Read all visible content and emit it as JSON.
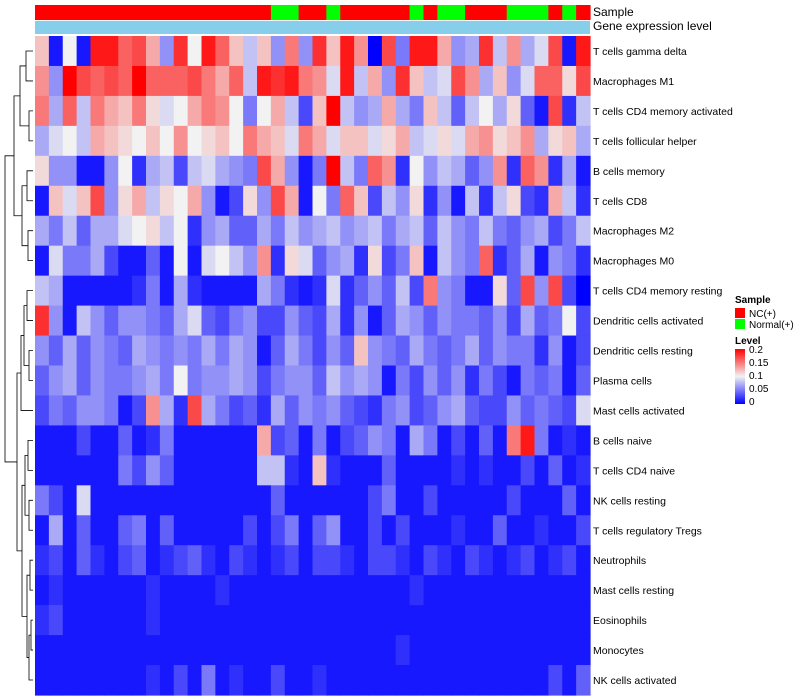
{
  "chart_data": {
    "type": "heatmap",
    "title": "",
    "row_labels": [
      "T cells gamma delta",
      "Macrophages M1",
      "T cells CD4 memory activated",
      "T cells follicular helper",
      "B cells memory",
      "T cells CD8",
      "Macrophages M2",
      "Macrophages M0",
      "T cells CD4 memory resting",
      "Dendritic cells activated",
      "Dendritic cells resting",
      "Plasma cells",
      "Mast cells activated",
      "B cells naive",
      "T cells CD4 naive",
      "NK cells resting",
      "T cells regulatory  Tregs",
      "Neutrophils",
      "Mast cells resting",
      "Eosinophils",
      "Monocytes",
      "NK cells activated"
    ],
    "annotations": {
      "sample_label": "Sample",
      "expression_label": "Gene expression level",
      "sample_groups": [
        "N",
        "N",
        "N",
        "N",
        "N",
        "N",
        "N",
        "N",
        "N",
        "N",
        "N",
        "N",
        "N",
        "N",
        "N",
        "N",
        "N",
        "T",
        "T",
        "N",
        "N",
        "T",
        "N",
        "N",
        "N",
        "N",
        "N",
        "T",
        "N",
        "T",
        "T",
        "N",
        "N",
        "N",
        "T",
        "T",
        "T",
        "N",
        "T",
        "N"
      ],
      "group_codes": {
        "N": "NC(+)",
        "T": "Normal(+)"
      }
    },
    "legend": {
      "sample_title": "Sample",
      "sample_entries": [
        {
          "label": "NC(+)",
          "color": "#FF0000"
        },
        {
          "label": "Normal(+)",
          "color": "#00FF00"
        }
      ],
      "level_title": "Level",
      "level_ticks": [
        "0.2",
        "0.15",
        "0.1",
        "0.05",
        "0"
      ],
      "level_range": [
        0,
        0.2
      ]
    },
    "colors": {
      "low": "#0000FF",
      "mid": "#F2F2F2",
      "high": "#FF0000",
      "annotation_bar": "#87CEEB",
      "dendrogram": "#000000"
    },
    "values": [
      [
        0.12,
        0.01,
        0.1,
        0.01,
        0.19,
        0.19,
        0.16,
        0.17,
        0.13,
        0.06,
        0.18,
        0.1,
        0.19,
        0.16,
        0.12,
        0.08,
        0.12,
        0.06,
        0.15,
        0.06,
        0.18,
        0.12,
        0.19,
        0.14,
        0.0,
        0.17,
        0.05,
        0.19,
        0.19,
        0.13,
        0.06,
        0.07,
        0.18,
        0.08,
        0.14,
        0.07,
        0.09,
        0.17,
        0.01,
        0.19
      ],
      [
        0.14,
        0.06,
        0.2,
        0.17,
        0.16,
        0.17,
        0.16,
        0.2,
        0.16,
        0.16,
        0.16,
        0.17,
        0.15,
        0.13,
        0.16,
        0.08,
        0.19,
        0.18,
        0.19,
        0.15,
        0.14,
        0.09,
        0.19,
        0.08,
        0.13,
        0.06,
        0.18,
        0.12,
        0.08,
        0.09,
        0.17,
        0.14,
        0.07,
        0.12,
        0.06,
        0.09,
        0.16,
        0.16,
        0.11,
        0.17
      ],
      [
        0.15,
        0.07,
        0.16,
        0.08,
        0.15,
        0.13,
        0.12,
        0.15,
        0.11,
        0.09,
        0.1,
        0.13,
        0.15,
        0.14,
        0.1,
        0.05,
        0.1,
        0.13,
        0.08,
        0.03,
        0.12,
        0.2,
        0.08,
        0.06,
        0.07,
        0.13,
        0.07,
        0.05,
        0.12,
        0.08,
        0.04,
        0.08,
        0.1,
        0.07,
        0.11,
        0.04,
        0.01,
        0.17,
        0.02,
        0.08
      ],
      [
        0.07,
        0.09,
        0.1,
        0.08,
        0.13,
        0.12,
        0.11,
        0.1,
        0.12,
        0.1,
        0.14,
        0.1,
        0.11,
        0.12,
        0.1,
        0.15,
        0.13,
        0.12,
        0.09,
        0.15,
        0.13,
        0.09,
        0.12,
        0.12,
        0.09,
        0.11,
        0.13,
        0.08,
        0.09,
        0.11,
        0.09,
        0.13,
        0.14,
        0.11,
        0.12,
        0.14,
        0.07,
        0.11,
        0.12,
        0.07
      ],
      [
        0.11,
        0.06,
        0.06,
        0.01,
        0.01,
        0.06,
        0.1,
        0.02,
        0.07,
        0.08,
        0.03,
        0.08,
        0.09,
        0.07,
        0.06,
        0.05,
        0.17,
        0.13,
        0.06,
        0.01,
        0.05,
        0.2,
        0.08,
        0.05,
        0.16,
        0.14,
        0.02,
        0.1,
        0.06,
        0.08,
        0.07,
        0.04,
        0.06,
        0.14,
        0.02,
        0.16,
        0.14,
        0.02,
        0.07,
        0.01
      ],
      [
        0.01,
        0.12,
        0.09,
        0.12,
        0.17,
        0.06,
        0.11,
        0.13,
        0.08,
        0.11,
        0.1,
        0.13,
        0.06,
        0.01,
        0.03,
        0.11,
        0.06,
        0.17,
        0.13,
        0.01,
        0.1,
        0.05,
        0.16,
        0.12,
        0.03,
        0.08,
        0.06,
        0.11,
        0.02,
        0.06,
        0.01,
        0.08,
        0.02,
        0.08,
        0.11,
        0.03,
        0.02,
        0.13,
        0.08,
        0.02
      ],
      [
        0.07,
        0.05,
        0.08,
        0.04,
        0.07,
        0.07,
        0.09,
        0.1,
        0.11,
        0.08,
        0.1,
        0.02,
        0.06,
        0.07,
        0.04,
        0.04,
        0.07,
        0.05,
        0.08,
        0.06,
        0.07,
        0.08,
        0.06,
        0.07,
        0.08,
        0.05,
        0.07,
        0.08,
        0.04,
        0.08,
        0.06,
        0.05,
        0.08,
        0.05,
        0.04,
        0.06,
        0.07,
        0.03,
        0.05,
        0.08
      ],
      [
        0.01,
        0.09,
        0.05,
        0.05,
        0.07,
        0.03,
        0.01,
        0.01,
        0.04,
        0.01,
        0.1,
        0.01,
        0.09,
        0.1,
        0.08,
        0.06,
        0.14,
        0.02,
        0.11,
        0.09,
        0.04,
        0.06,
        0.07,
        0.02,
        0.11,
        0.03,
        0.05,
        0.12,
        0.01,
        0.08,
        0.06,
        0.05,
        0.16,
        0.02,
        0.04,
        0.07,
        0.01,
        0.06,
        0.05,
        0.02
      ],
      [
        0.08,
        0.07,
        0.01,
        0.01,
        0.01,
        0.01,
        0.01,
        0.02,
        0.05,
        0.01,
        0.07,
        0.02,
        0.01,
        0.01,
        0.01,
        0.01,
        0.07,
        0.05,
        0.02,
        0.01,
        0.02,
        0.09,
        0.02,
        0.04,
        0.06,
        0.04,
        0.08,
        0.03,
        0.15,
        0.06,
        0.05,
        0.01,
        0.01,
        0.11,
        0.04,
        0.17,
        0.06,
        0.17,
        0.03,
        0.0
      ],
      [
        0.18,
        0.06,
        0.01,
        0.08,
        0.06,
        0.04,
        0.06,
        0.06,
        0.05,
        0.04,
        0.07,
        0.09,
        0.04,
        0.03,
        0.05,
        0.06,
        0.03,
        0.03,
        0.06,
        0.04,
        0.03,
        0.07,
        0.02,
        0.06,
        0.01,
        0.04,
        0.07,
        0.06,
        0.04,
        0.06,
        0.05,
        0.05,
        0.04,
        0.06,
        0.03,
        0.07,
        0.04,
        0.05,
        0.1,
        0.03
      ],
      [
        0.06,
        0.04,
        0.07,
        0.04,
        0.06,
        0.05,
        0.04,
        0.07,
        0.06,
        0.05,
        0.06,
        0.05,
        0.07,
        0.05,
        0.07,
        0.06,
        0.01,
        0.04,
        0.07,
        0.05,
        0.03,
        0.06,
        0.04,
        0.12,
        0.06,
        0.05,
        0.04,
        0.07,
        0.05,
        0.04,
        0.05,
        0.07,
        0.04,
        0.06,
        0.05,
        0.05,
        0.02,
        0.06,
        0.01,
        0.03
      ],
      [
        0.04,
        0.06,
        0.07,
        0.04,
        0.06,
        0.05,
        0.05,
        0.06,
        0.07,
        0.05,
        0.1,
        0.05,
        0.06,
        0.06,
        0.07,
        0.06,
        0.03,
        0.05,
        0.06,
        0.06,
        0.04,
        0.08,
        0.06,
        0.07,
        0.06,
        0.01,
        0.05,
        0.03,
        0.06,
        0.04,
        0.06,
        0.02,
        0.05,
        0.03,
        0.01,
        0.05,
        0.04,
        0.05,
        0.01,
        0.04
      ],
      [
        0.03,
        0.05,
        0.04,
        0.06,
        0.06,
        0.05,
        0.01,
        0.03,
        0.14,
        0.07,
        0.02,
        0.17,
        0.07,
        0.05,
        0.03,
        0.04,
        0.02,
        0.07,
        0.04,
        0.06,
        0.05,
        0.06,
        0.04,
        0.03,
        0.02,
        0.05,
        0.06,
        0.03,
        0.04,
        0.06,
        0.07,
        0.04,
        0.03,
        0.03,
        0.06,
        0.04,
        0.05,
        0.04,
        0.03,
        0.09
      ],
      [
        0.01,
        0.01,
        0.01,
        0.03,
        0.01,
        0.01,
        0.04,
        0.01,
        0.02,
        0.05,
        0.01,
        0.01,
        0.01,
        0.01,
        0.01,
        0.01,
        0.13,
        0.03,
        0.04,
        0.01,
        0.05,
        0.01,
        0.03,
        0.04,
        0.06,
        0.05,
        0.01,
        0.07,
        0.05,
        0.01,
        0.03,
        0.01,
        0.04,
        0.01,
        0.15,
        0.19,
        0.05,
        0.01,
        0.02,
        0.01
      ],
      [
        0.01,
        0.01,
        0.01,
        0.01,
        0.01,
        0.01,
        0.05,
        0.03,
        0.06,
        0.04,
        0.01,
        0.01,
        0.01,
        0.01,
        0.01,
        0.01,
        0.08,
        0.08,
        0.02,
        0.01,
        0.12,
        0.02,
        0.01,
        0.01,
        0.01,
        0.04,
        0.01,
        0.01,
        0.01,
        0.01,
        0.02,
        0.01,
        0.02,
        0.01,
        0.01,
        0.03,
        0.01,
        0.04,
        0.01,
        0.02
      ],
      [
        0.05,
        0.03,
        0.01,
        0.09,
        0.01,
        0.01,
        0.01,
        0.01,
        0.01,
        0.01,
        0.01,
        0.01,
        0.01,
        0.01,
        0.01,
        0.01,
        0.01,
        0.04,
        0.01,
        0.01,
        0.01,
        0.01,
        0.01,
        0.01,
        0.03,
        0.05,
        0.01,
        0.01,
        0.03,
        0.01,
        0.01,
        0.01,
        0.01,
        0.01,
        0.03,
        0.01,
        0.01,
        0.01,
        0.04,
        0.01
      ],
      [
        0.01,
        0.07,
        0.01,
        0.04,
        0.01,
        0.01,
        0.04,
        0.05,
        0.01,
        0.04,
        0.01,
        0.01,
        0.01,
        0.01,
        0.01,
        0.03,
        0.01,
        0.03,
        0.05,
        0.01,
        0.04,
        0.06,
        0.01,
        0.01,
        0.03,
        0.01,
        0.03,
        0.01,
        0.01,
        0.01,
        0.02,
        0.01,
        0.01,
        0.04,
        0.01,
        0.01,
        0.02,
        0.01,
        0.01,
        0.03
      ],
      [
        0.02,
        0.03,
        0.01,
        0.04,
        0.02,
        0.01,
        0.03,
        0.04,
        0.01,
        0.02,
        0.03,
        0.04,
        0.02,
        0.01,
        0.03,
        0.02,
        0.01,
        0.02,
        0.03,
        0.01,
        0.03,
        0.03,
        0.02,
        0.01,
        0.03,
        0.03,
        0.02,
        0.01,
        0.03,
        0.02,
        0.01,
        0.03,
        0.02,
        0.01,
        0.02,
        0.03,
        0.01,
        0.02,
        0.03,
        0.01
      ],
      [
        0.01,
        0.02,
        0.01,
        0.01,
        0.01,
        0.01,
        0.01,
        0.01,
        0.02,
        0.01,
        0.01,
        0.01,
        0.01,
        0.02,
        0.01,
        0.01,
        0.01,
        0.01,
        0.01,
        0.01,
        0.01,
        0.01,
        0.01,
        0.01,
        0.01,
        0.01,
        0.01,
        0.02,
        0.01,
        0.01,
        0.01,
        0.01,
        0.01,
        0.01,
        0.01,
        0.01,
        0.01,
        0.01,
        0.01,
        0.01
      ],
      [
        0.02,
        0.03,
        0.01,
        0.01,
        0.01,
        0.01,
        0.01,
        0.01,
        0.02,
        0.01,
        0.01,
        0.01,
        0.01,
        0.01,
        0.01,
        0.01,
        0.01,
        0.01,
        0.01,
        0.01,
        0.01,
        0.01,
        0.01,
        0.01,
        0.01,
        0.01,
        0.01,
        0.01,
        0.01,
        0.01,
        0.01,
        0.01,
        0.01,
        0.01,
        0.01,
        0.01,
        0.01,
        0.01,
        0.01,
        0.01
      ],
      [
        0.01,
        0.01,
        0.01,
        0.01,
        0.01,
        0.01,
        0.01,
        0.01,
        0.01,
        0.01,
        0.01,
        0.01,
        0.01,
        0.01,
        0.01,
        0.01,
        0.01,
        0.01,
        0.01,
        0.01,
        0.01,
        0.01,
        0.01,
        0.01,
        0.01,
        0.01,
        0.02,
        0.01,
        0.01,
        0.01,
        0.01,
        0.01,
        0.01,
        0.01,
        0.01,
        0.01,
        0.01,
        0.01,
        0.01,
        0.01
      ],
      [
        0.01,
        0.01,
        0.01,
        0.01,
        0.01,
        0.01,
        0.01,
        0.01,
        0.02,
        0.01,
        0.03,
        0.01,
        0.05,
        0.01,
        0.02,
        0.01,
        0.01,
        0.03,
        0.01,
        0.01,
        0.02,
        0.01,
        0.01,
        0.01,
        0.01,
        0.01,
        0.01,
        0.01,
        0.01,
        0.01,
        0.01,
        0.01,
        0.01,
        0.01,
        0.01,
        0.01,
        0.01,
        0.03,
        0.01,
        0.04
      ]
    ]
  }
}
